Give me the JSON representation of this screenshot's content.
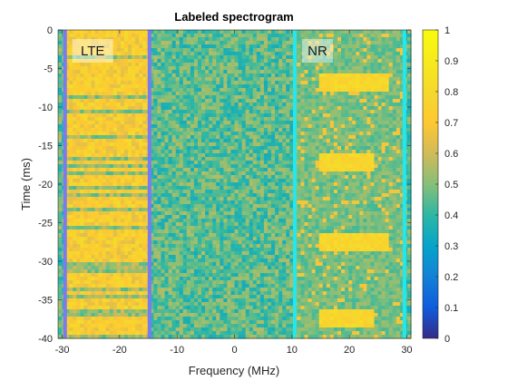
{
  "chart_data": {
    "type": "heatmap",
    "title": "Labeled spectrogram",
    "xlabel": "Frequency (MHz)",
    "ylabel": "Time (ms)",
    "xlim": [
      -30.72,
      30.72
    ],
    "ylim": [
      -40,
      0
    ],
    "xticks": [
      -30,
      -20,
      -10,
      0,
      10,
      20,
      30
    ],
    "yticks": [
      0,
      -5,
      -10,
      -15,
      -20,
      -25,
      -30,
      -35,
      -40
    ],
    "colorbar": {
      "clim": [
        0,
        1
      ],
      "ticks": [
        0,
        0.1,
        0.2,
        0.3,
        0.4,
        0.5,
        0.6,
        0.7,
        0.8,
        0.9,
        1
      ],
      "colormap": "parula"
    },
    "background_level": 0.45,
    "grid": false,
    "regions": [
      {
        "label": "LTE",
        "freq_range_mhz": [
          -29.5,
          -14.8
        ],
        "time_range_ms": [
          0,
          -40
        ],
        "border_color": "#7b7bf0",
        "level": 0.72,
        "label_position": "top-left"
      },
      {
        "label": "NR",
        "freq_range_mhz": [
          10.5,
          29.6
        ],
        "time_range_ms": [
          0,
          -40
        ],
        "border_color": "#22e8f0",
        "level": 0.48,
        "label_position": "top-left",
        "bursts": [
          {
            "time_ms": [
              -5.8,
              -8.2
            ],
            "freq_mhz": [
              15,
              27
            ],
            "level": 0.78
          },
          {
            "time_ms": [
              -16.2,
              -18.4
            ],
            "freq_mhz": [
              15,
              24
            ],
            "level": 0.78
          },
          {
            "time_ms": [
              -26.3,
              -28.6
            ],
            "freq_mhz": [
              15,
              27
            ],
            "level": 0.78
          },
          {
            "time_ms": [
              -36.2,
              -38.4
            ],
            "freq_mhz": [
              15,
              24
            ],
            "level": 0.78
          }
        ]
      }
    ]
  }
}
